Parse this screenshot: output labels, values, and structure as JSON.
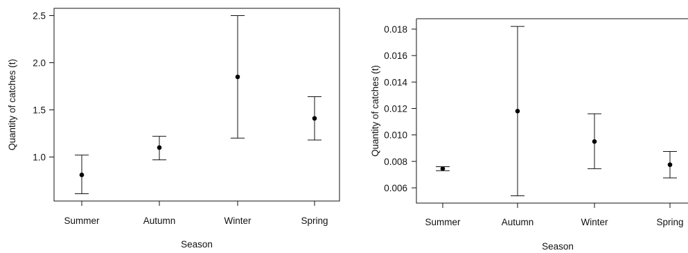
{
  "chart_data": [
    {
      "type": "scatter",
      "error_bars": true,
      "categories": [
        "Summer",
        "Autumn",
        "Winter",
        "Spring"
      ],
      "values": [
        0.81,
        1.1,
        1.85,
        1.41
      ],
      "lower": [
        0.61,
        0.97,
        1.2,
        1.18
      ],
      "upper": [
        1.02,
        1.22,
        2.5,
        1.64
      ],
      "xlabel": "Season",
      "ylabel": "Quantity of catches (t)",
      "yticks": [
        "1.0",
        "1.5",
        "2.0",
        "2.5"
      ],
      "ytick_values": [
        1.0,
        1.5,
        2.0,
        2.5
      ],
      "ylim": [
        0.5,
        2.5
      ],
      "grid": false
    },
    {
      "type": "scatter",
      "error_bars": true,
      "categories": [
        "Summer",
        "Autumn",
        "Winter",
        "Spring"
      ],
      "values": [
        0.00745,
        0.0118,
        0.0095,
        0.00775
      ],
      "lower": [
        0.0073,
        0.0054,
        0.00745,
        0.00675
      ],
      "upper": [
        0.0076,
        0.0182,
        0.0116,
        0.00875
      ],
      "xlabel": "Season",
      "ylabel": "Quantity of catches (t)",
      "yticks": [
        "0.006",
        "0.008",
        "0.010",
        "0.012",
        "0.014",
        "0.016",
        "0.018"
      ],
      "ytick_values": [
        0.006,
        0.008,
        0.01,
        0.012,
        0.014,
        0.016,
        0.018
      ],
      "ylim": [
        0.0049,
        0.0189
      ],
      "grid": false
    }
  ]
}
